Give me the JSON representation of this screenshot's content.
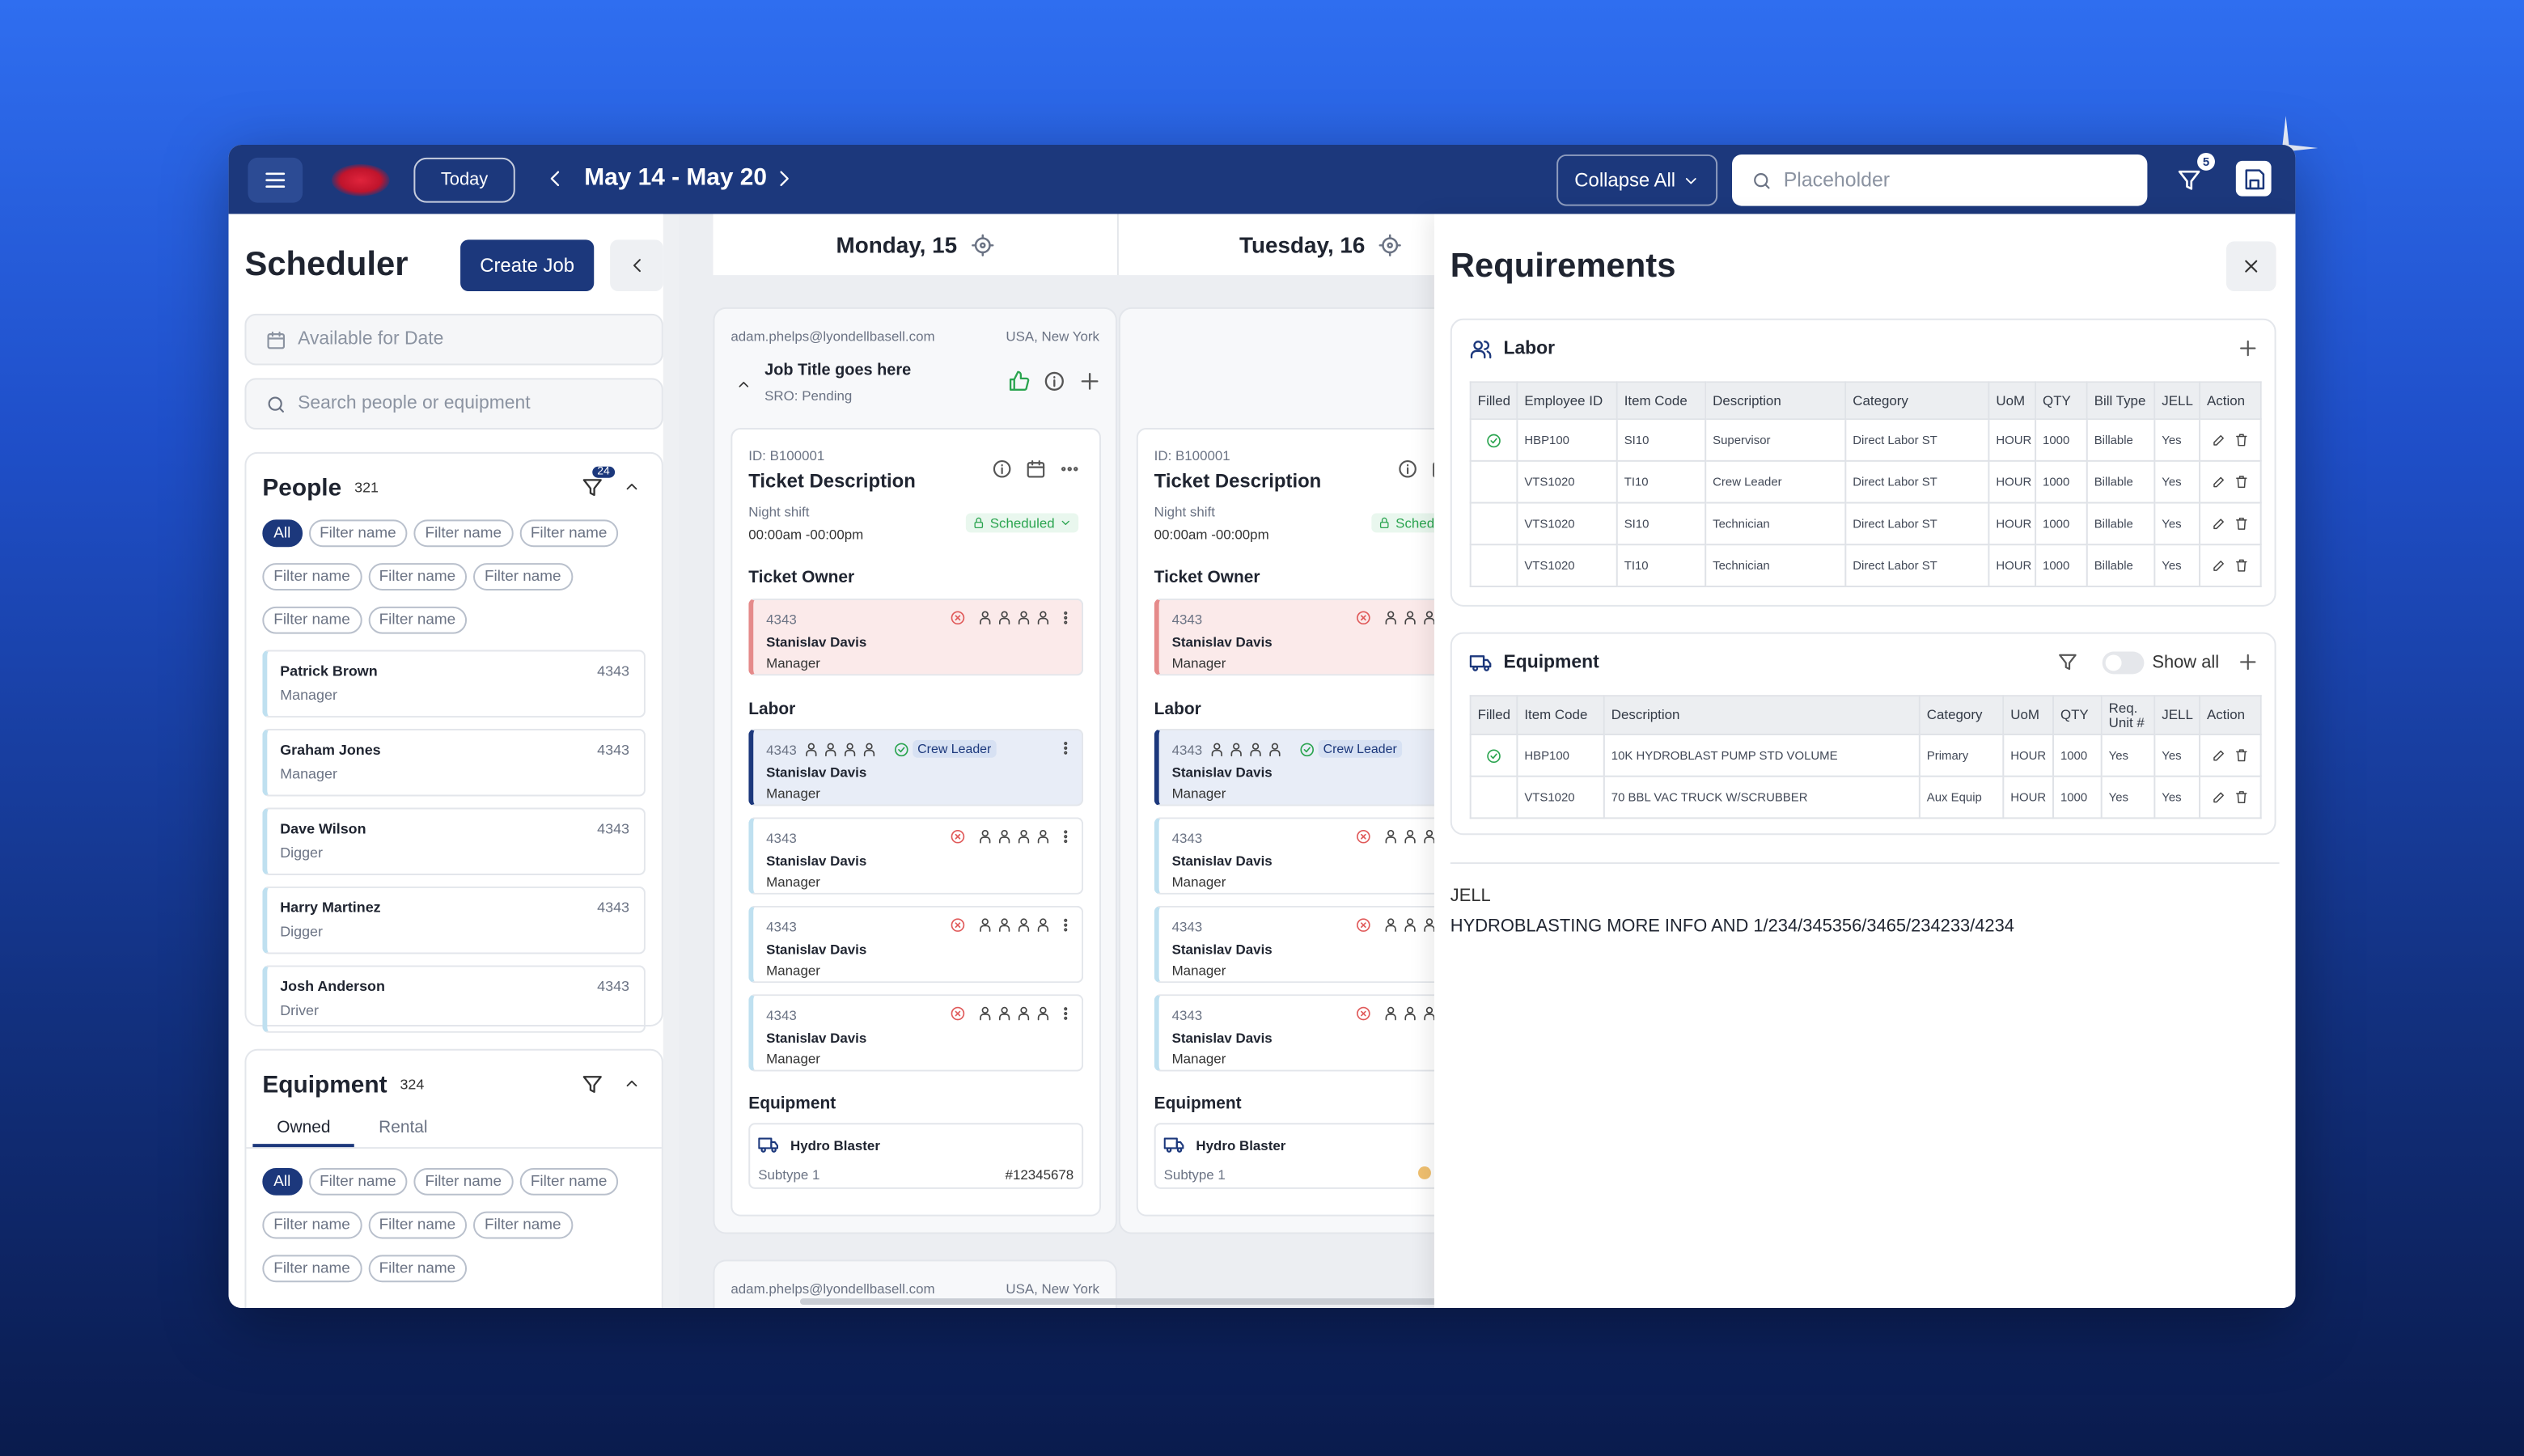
{
  "topbar": {
    "today": "Today",
    "date_range": "May 14 - May 20",
    "collapse_all": "Collapse All",
    "search_placeholder": "Placeholder",
    "filter_badge": "5"
  },
  "sidebar": {
    "title": "Scheduler",
    "create_job": "Create Job",
    "available_placeholder": "Available for Date",
    "search_placeholder": "Search people or equipment",
    "people": {
      "title": "People",
      "count": "321",
      "badge": "24",
      "filters": [
        "All",
        "Filter name",
        "Filter name",
        "Filter name",
        "Filter name",
        "Filter name",
        "Filter name",
        "Filter name",
        "Filter name"
      ],
      "list": [
        {
          "name": "Patrick Brown",
          "id": "4343",
          "role": "Manager"
        },
        {
          "name": "Graham Jones",
          "id": "4343",
          "role": "Manager"
        },
        {
          "name": "Dave Wilson",
          "id": "4343",
          "role": "Digger"
        },
        {
          "name": "Harry Martinez",
          "id": "4343",
          "role": "Digger"
        },
        {
          "name": "Josh Anderson",
          "id": "4343",
          "role": "Driver"
        }
      ]
    },
    "equipment": {
      "title": "Equipment",
      "count": "324",
      "tabs": [
        "Owned",
        "Rental"
      ],
      "filters": [
        "All",
        "Filter name",
        "Filter name",
        "Filter name",
        "Filter name",
        "Filter name",
        "Filter name",
        "Filter name",
        "Filter name"
      ]
    }
  },
  "calendar": {
    "days": [
      "Monday, 15",
      "Tuesday, 16"
    ],
    "job": {
      "email": "adam.phelps@lyondellbasell.com",
      "location": "USA, New York",
      "title": "Job Title goes here",
      "sro": "SRO: Pending"
    },
    "tickets": [
      {
        "id": "ID: B100001",
        "title": "Ticket Description",
        "shift": "Night shift",
        "time": "00:00am -00:00pm",
        "status": "Scheduled",
        "owner_label": "Ticket Owner",
        "owner": {
          "id": "4343",
          "name": "Stanislav Davis",
          "role": "Manager"
        },
        "labor_label": "Labor",
        "labor": [
          {
            "id": "4343",
            "name": "Stanislav Davis",
            "role": "Manager",
            "tag": "Crew Leader"
          },
          {
            "id": "4343",
            "name": "Stanislav Davis",
            "role": "Manager"
          },
          {
            "id": "4343",
            "name": "Stanislav Davis",
            "role": "Manager"
          },
          {
            "id": "4343",
            "name": "Stanislav Davis",
            "role": "Manager"
          }
        ],
        "equipment_label": "Equipment",
        "equipment": {
          "name": "Hydro Blaster",
          "subtype": "Subtype 1",
          "number": "#12345678"
        }
      },
      {
        "id": "ID: B100001",
        "title": "Ticket Description",
        "shift": "Night shift",
        "time": "00:00am -00:00pm",
        "status": "Scheduled",
        "owner_label": "Ticket Owner",
        "owner": {
          "id": "4343",
          "name": "Stanislav Davis",
          "role": "Manager"
        },
        "labor_label": "Labor",
        "labor": [
          {
            "id": "4343",
            "name": "Stanislav Davis",
            "role": "Manager",
            "tag": "Crew Leader"
          },
          {
            "id": "4343",
            "name": "Stanislav Davis",
            "role": "Manager"
          },
          {
            "id": "4343",
            "name": "Stanislav Davis",
            "role": "Manager"
          },
          {
            "id": "4343",
            "name": "Stanislav Davis",
            "role": "Manager"
          }
        ],
        "equipment_label": "Equipment",
        "equipment": {
          "name": "Hydro Blaster",
          "subtype": "Subtype 1"
        }
      }
    ],
    "next_job": {
      "email": "adam.phelps@lyondellbasell.com",
      "location": "USA, New York"
    }
  },
  "requirements": {
    "title": "Requirements",
    "labor": {
      "title": "Labor",
      "headers": [
        "Filled",
        "Employee ID",
        "Item Code",
        "Description",
        "Category",
        "UoM",
        "QTY",
        "Bill Type",
        "JELL",
        "Action"
      ],
      "filled": [
        true,
        false,
        false,
        false
      ],
      "rows": [
        [
          "HBP100",
          "SI10",
          "Supervisor",
          "Direct Labor ST",
          "HOUR",
          "1000",
          "Billable",
          "Yes"
        ],
        [
          "VTS1020",
          "TI10",
          "Crew Leader",
          "Direct Labor ST",
          "HOUR",
          "1000",
          "Billable",
          "Yes"
        ],
        [
          "VTS1020",
          "SI10",
          "Technician",
          "Direct Labor ST",
          "HOUR",
          "1000",
          "Billable",
          "Yes"
        ],
        [
          "VTS1020",
          "TI10",
          "Technician",
          "Direct Labor ST",
          "HOUR",
          "1000",
          "Billable",
          "Yes"
        ]
      ]
    },
    "equipment": {
      "title": "Equipment",
      "show_all": "Show all",
      "headers": [
        "Filled",
        "Item Code",
        "Description",
        "Category",
        "UoM",
        "QTY",
        "Req. Unit #",
        "JELL",
        "Action"
      ],
      "filled": [
        true,
        false
      ],
      "rows": [
        [
          "HBP100",
          "10K HYDROBLAST PUMP STD VOLUME",
          "Primary",
          "HOUR",
          "1000",
          "Yes",
          "Yes"
        ],
        [
          "VTS1020",
          "70 BBL VAC TRUCK W/SCRUBBER",
          "Aux Equip",
          "HOUR",
          "1000",
          "Yes",
          "Yes"
        ]
      ]
    },
    "notes": {
      "label": "JELL",
      "text": "HYDROBLASTING MORE INFO AND 1/234/345356/3465/234233/4234"
    }
  }
}
